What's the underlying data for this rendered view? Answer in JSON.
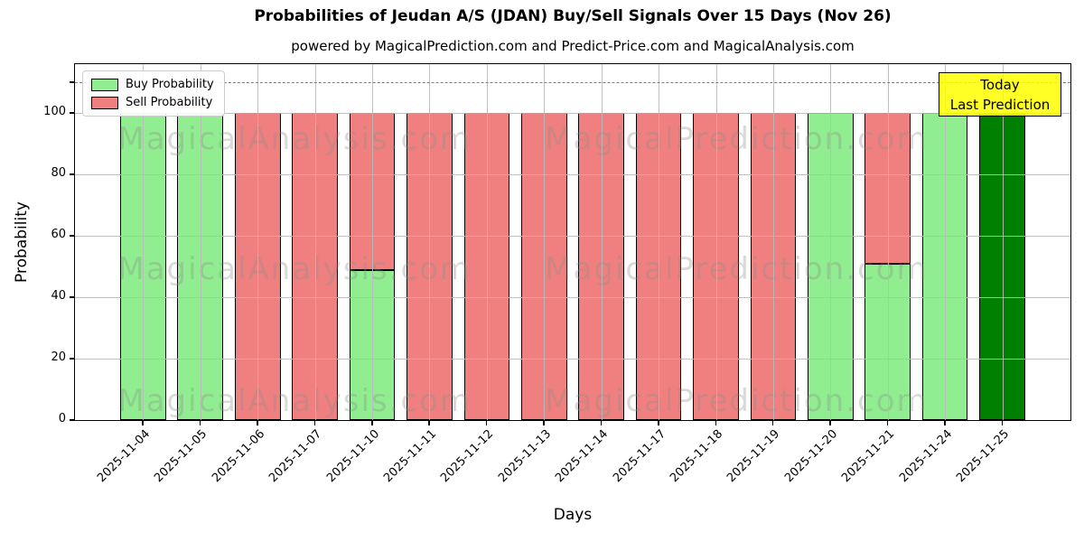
{
  "title": "Probabilities of Jeudan A/S (JDAN) Buy/Sell Signals Over 15 Days (Nov 26)",
  "subtitle": "powered by MagicalPrediction.com and Predict-Price.com and MagicalAnalysis.com",
  "axis": {
    "xlabel": "Days",
    "ylabel": "Probability"
  },
  "legend": {
    "items": [
      {
        "label": "Buy Probability",
        "color": "#90EE90"
      },
      {
        "label": "Sell Probability",
        "color": "#F08080"
      }
    ]
  },
  "annotation": {
    "line1": "Today",
    "line2": "Last Prediction",
    "bg_color": "#FFFF00"
  },
  "watermark": {
    "left_text": "MagicalAnalysis.com",
    "right_text": "MagicalPrediction.com"
  },
  "chart_data": {
    "type": "bar",
    "stacked": true,
    "categories": [
      "2025-11-04",
      "2025-11-05",
      "2025-11-06",
      "2025-11-07",
      "2025-11-10",
      "2025-11-11",
      "2025-11-12",
      "2025-11-13",
      "2025-11-14",
      "2025-11-17",
      "2025-11-18",
      "2025-11-19",
      "2025-11-20",
      "2025-11-21",
      "2025-11-24",
      "2025-11-25"
    ],
    "series": [
      {
        "name": "Buy Probability",
        "color": "#90EE90",
        "values": [
          100,
          100,
          0,
          0,
          49,
          0,
          0,
          0,
          0,
          0,
          0,
          0,
          100,
          51,
          100,
          100
        ]
      },
      {
        "name": "Sell Probability",
        "color": "#F08080",
        "values": [
          0,
          0,
          100,
          100,
          51,
          100,
          100,
          100,
          100,
          100,
          100,
          100,
          0,
          49,
          0,
          0
        ]
      }
    ],
    "today_index": 15,
    "today_color": "#008000",
    "title": "Probabilities of Jeudan A/S (JDAN) Buy/Sell Signals Over 15 Days (Nov 26)",
    "xlabel": "Days",
    "ylabel": "Probability",
    "yticks": [
      0,
      20,
      40,
      60,
      80,
      100
    ],
    "ylim": [
      0,
      116
    ],
    "xlim": [
      -1.19,
      16.19
    ],
    "bar_width": 0.8,
    "dashed_line_y": 110,
    "grid": true,
    "legend_position": "upper left"
  }
}
